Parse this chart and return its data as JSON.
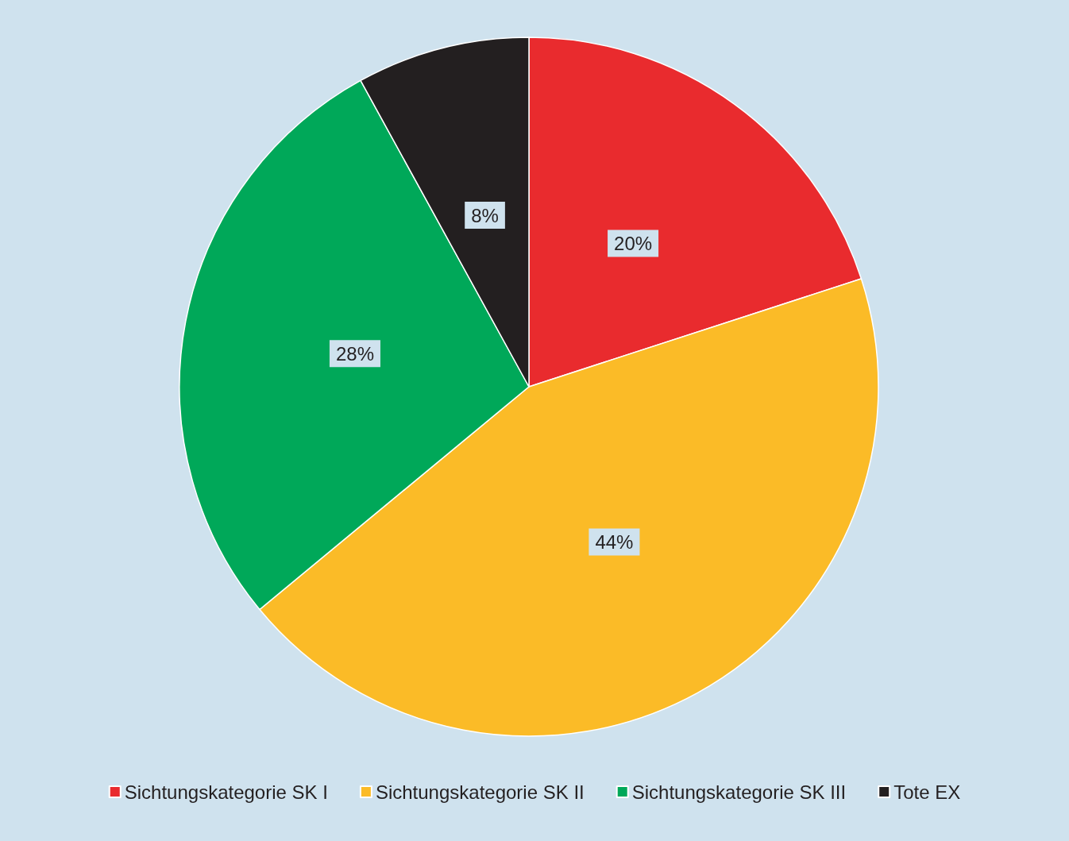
{
  "chart_data": {
    "type": "pie",
    "categories": [
      "Sichtungskategorie SK I",
      "Sichtungskategorie SK II",
      "Sichtungskategorie SK III",
      "Tote EX"
    ],
    "values": [
      20,
      44,
      28,
      8
    ],
    "value_labels": [
      "20%",
      "44%",
      "28%",
      "8%"
    ],
    "colors": [
      "#e92b2e",
      "#fbbb27",
      "#00a859",
      "#231f20"
    ],
    "legend": "bottom"
  }
}
